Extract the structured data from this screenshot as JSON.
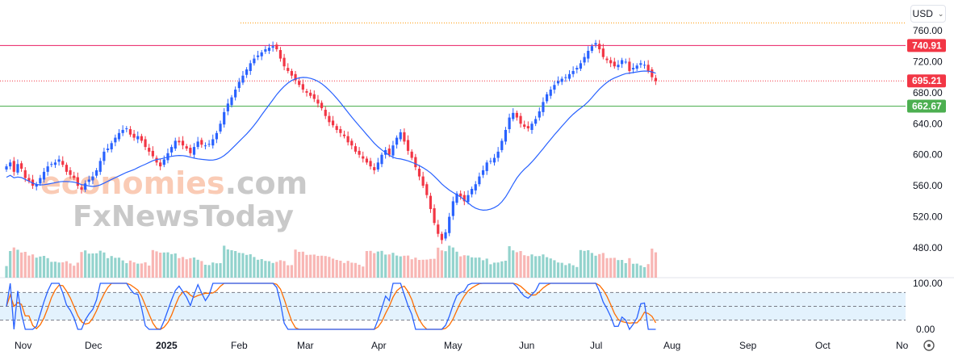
{
  "currency": {
    "label": "USD"
  },
  "watermark": {
    "line1_a": "economies",
    "line1_b": ".com",
    "line2": "FxNewsToday"
  },
  "price_axis": {
    "labels": [
      "760.00",
      "720.00",
      "680.00",
      "640.00",
      "600.00",
      "560.00",
      "520.00",
      "480.00"
    ]
  },
  "osc_axis": {
    "top_label": "100.00",
    "bottom_label": "0.00"
  },
  "price_tags": [
    {
      "text": "740.91",
      "value": 740.91,
      "color": "#f23645"
    },
    {
      "text": "695.21",
      "value": 695.21,
      "color": "#f23645"
    },
    {
      "text": "662.67",
      "value": 662.67,
      "color": "#4caf50"
    }
  ],
  "time_axis": {
    "labels": [
      "Nov",
      "Dec",
      "2025",
      "Feb",
      "Mar",
      "Apr",
      "May",
      "Jun",
      "Jul",
      "Aug",
      "Sep",
      "Oct",
      "No"
    ]
  },
  "colors": {
    "up": "#2962ff",
    "down": "#f23645",
    "ma": "#2962ff",
    "k": "#2962ff",
    "d": "#ff6d00"
  },
  "chart_data": {
    "type": "candlestick",
    "price_range": [
      450,
      775
    ],
    "reference_lines": [
      {
        "value": 740.91,
        "style": "solid",
        "color": "#e91e63"
      },
      {
        "value": 695.21,
        "style": "dotted",
        "color": "#f23645"
      },
      {
        "value": 662.67,
        "style": "solid",
        "color": "#4caf50"
      },
      {
        "value": 770,
        "style": "dotted",
        "color": "#ff9800"
      }
    ],
    "oscillator": {
      "range": [
        0,
        100
      ],
      "upper_level": 80,
      "lower_level": 20,
      "mid_level": 50
    },
    "closes": [
      585,
      590,
      578,
      588,
      582,
      570,
      566,
      560,
      562,
      570,
      578,
      585,
      588,
      590,
      594,
      587,
      578,
      574,
      570,
      560,
      555,
      563,
      568,
      572,
      580,
      592,
      604,
      608,
      615,
      622,
      628,
      632,
      634,
      626,
      622,
      624,
      618,
      610,
      604,
      598,
      590,
      585,
      594,
      602,
      610,
      618,
      616,
      612,
      608,
      602,
      610,
      617,
      613,
      612,
      614,
      620,
      628,
      640,
      655,
      666,
      674,
      684,
      694,
      702,
      710,
      718,
      724,
      728,
      732,
      736,
      738,
      740,
      736,
      724,
      714,
      708,
      702,
      696,
      690,
      684,
      680,
      676,
      672,
      666,
      660,
      650,
      642,
      638,
      632,
      628,
      624,
      616,
      612,
      604,
      600,
      595,
      590,
      585,
      580,
      590,
      600,
      606,
      600,
      612,
      622,
      629,
      617,
      605,
      596,
      584,
      572,
      560,
      548,
      530,
      512,
      498,
      490,
      500,
      520,
      540,
      550,
      546,
      540,
      548,
      556,
      562,
      572,
      580,
      590,
      592,
      596,
      604,
      618,
      632,
      648,
      654,
      648,
      640,
      636,
      634,
      640,
      646,
      656,
      668,
      678,
      684,
      690,
      695,
      698,
      700,
      704,
      708,
      712,
      718,
      726,
      734,
      740,
      744,
      736,
      726,
      722,
      718,
      714,
      716,
      722,
      720,
      708,
      712,
      715,
      718,
      716,
      708,
      700,
      695
    ]
  }
}
